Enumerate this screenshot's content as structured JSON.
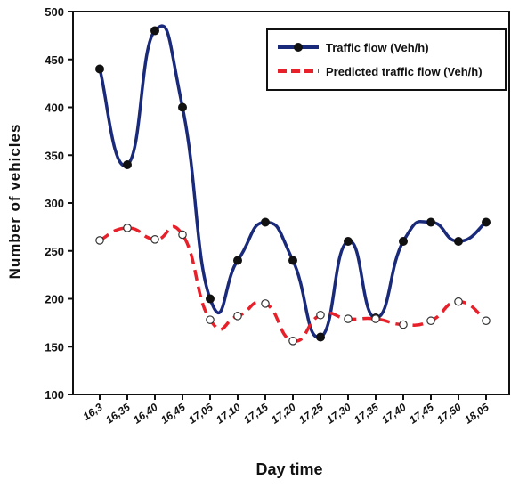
{
  "chart_data": {
    "type": "line",
    "xlabel": "Day time",
    "ylabel": "Number of vehicles",
    "categories": [
      "16,3",
      "16,35",
      "16,40",
      "16,45",
      "17,05",
      "17,10",
      "17,15",
      "17,20",
      "17,25",
      "17,30",
      "17,35",
      "17,40",
      "17,45",
      "17,50",
      "18,05"
    ],
    "ylim": [
      100,
      500
    ],
    "yticks": [
      "100",
      "150",
      "200",
      "250",
      "300",
      "350",
      "400",
      "450",
      "500"
    ],
    "grid": false,
    "legend_position": "top-right",
    "series": [
      {
        "name": "Traffic flow (Veh/h)",
        "color": "#1a2a7a",
        "style": "solid",
        "marker": "filled-circle",
        "values": [
          440,
          340,
          480,
          400,
          200,
          240,
          280,
          240,
          160,
          260,
          180,
          260,
          280,
          260,
          280
        ]
      },
      {
        "name": "Predicted traffic flow (Veh/h)",
        "color": "#e8202a",
        "style": "dashed",
        "marker": "open-circle",
        "values": [
          261,
          274,
          262,
          267,
          178,
          182,
          195,
          156,
          183,
          179,
          179,
          173,
          177,
          197,
          177
        ]
      }
    ]
  }
}
